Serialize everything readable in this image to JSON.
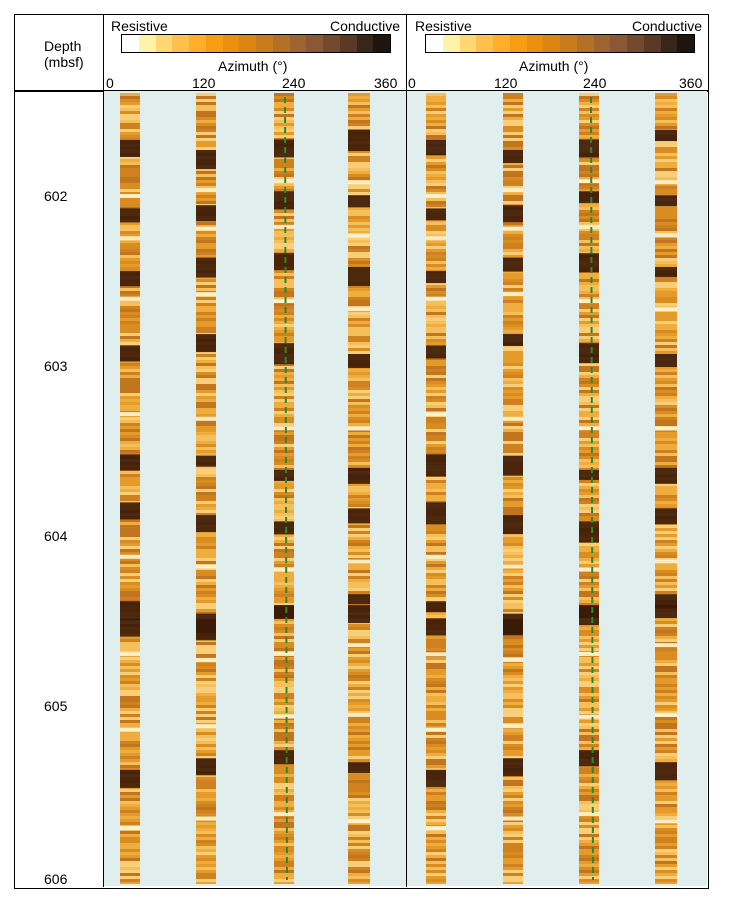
{
  "header": {
    "depth_label_line1": "Depth",
    "depth_label_line2": "(mbsf)"
  },
  "panels": [
    {
      "resistive_label": "Resistive",
      "conductive_label": "Conductive",
      "azimuth_label": "Azimuth (°)",
      "azimuth_ticks": [
        "0",
        "120",
        "240",
        "360"
      ]
    },
    {
      "resistive_label": "Resistive",
      "conductive_label": "Conductive",
      "azimuth_label": "Azimuth (°)",
      "azimuth_ticks": [
        "0",
        "120",
        "240",
        "360"
      ]
    }
  ],
  "colorscale": [
    "#ffffff",
    "#fff3a8",
    "#ffd873",
    "#ffc04d",
    "#ffae2a",
    "#f79d12",
    "#ea900e",
    "#db8614",
    "#c97a1e",
    "#b46f28",
    "#9e6430",
    "#8a5834",
    "#734a2e",
    "#5a3a24",
    "#3a2618",
    "#1e1410"
  ],
  "depth_ticks": [
    "602",
    "603",
    "604",
    "605",
    "606"
  ],
  "colors": {
    "background": "#e1eeee",
    "strip_base": "#e9a232",
    "dark_band": "#3a1a08",
    "light_band": "#fff7d8",
    "fracture_trace": "#2a8a2a"
  }
}
